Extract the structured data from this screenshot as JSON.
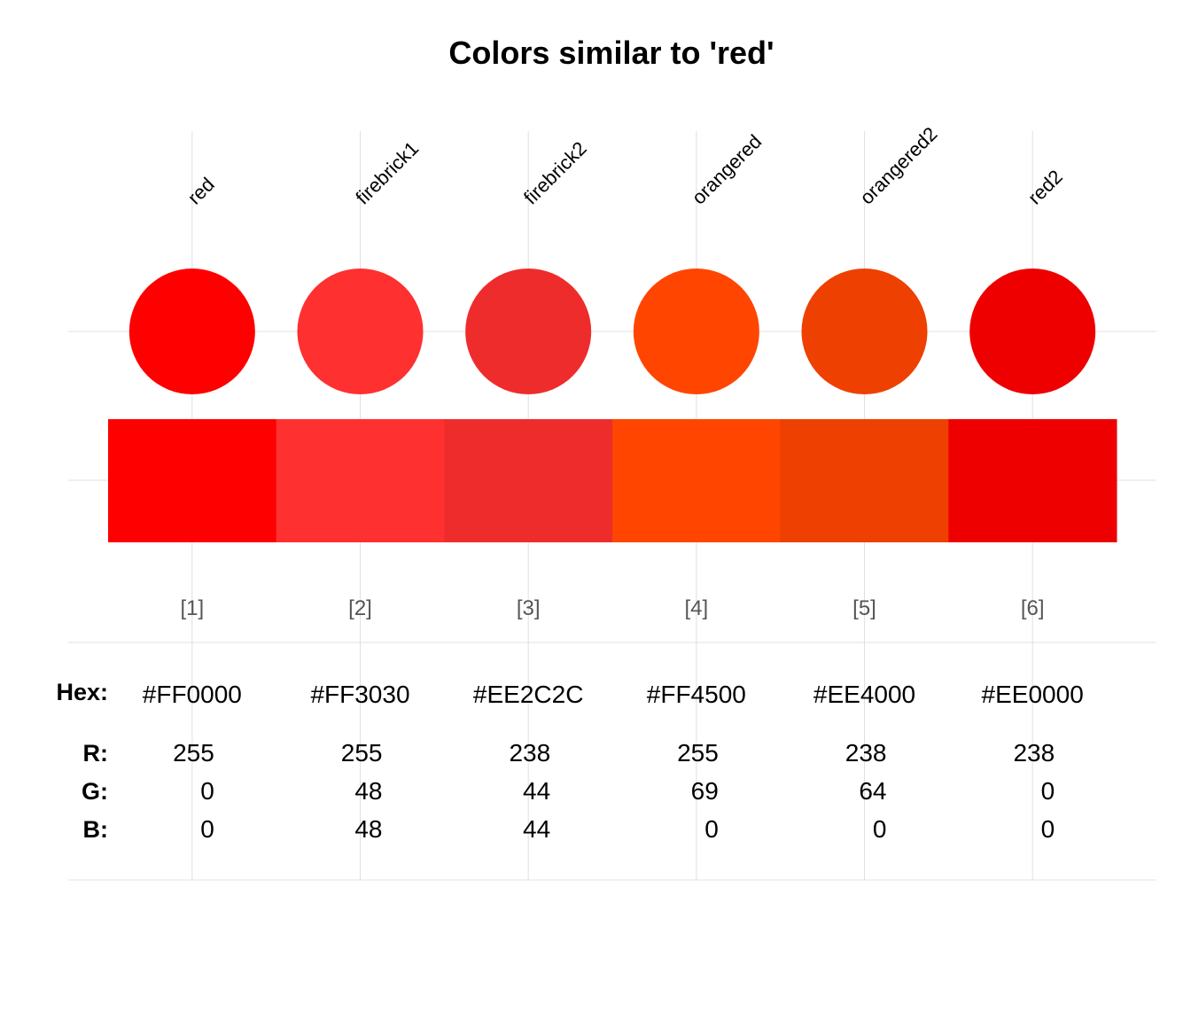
{
  "chart_data": {
    "type": "table",
    "title": "Colors similar to 'red'",
    "row_labels": {
      "hex": "Hex:",
      "r": "R:",
      "g": "G:",
      "b": "B:"
    },
    "colors": [
      {
        "name": "red",
        "index": "[1]",
        "hex": "#FF0000",
        "r": 255,
        "g": 0,
        "b": 0
      },
      {
        "name": "firebrick1",
        "index": "[2]",
        "hex": "#FF3030",
        "r": 255,
        "g": 48,
        "b": 48
      },
      {
        "name": "firebrick2",
        "index": "[3]",
        "hex": "#EE2C2C",
        "r": 238,
        "g": 44,
        "b": 44
      },
      {
        "name": "orangered",
        "index": "[4]",
        "hex": "#FF4500",
        "r": 255,
        "g": 69,
        "b": 0
      },
      {
        "name": "orangered2",
        "index": "[5]",
        "hex": "#EE4000",
        "r": 238,
        "g": 64,
        "b": 0
      },
      {
        "name": "red2",
        "index": "[6]",
        "hex": "#EE0000",
        "r": 238,
        "g": 0,
        "b": 0
      }
    ]
  }
}
